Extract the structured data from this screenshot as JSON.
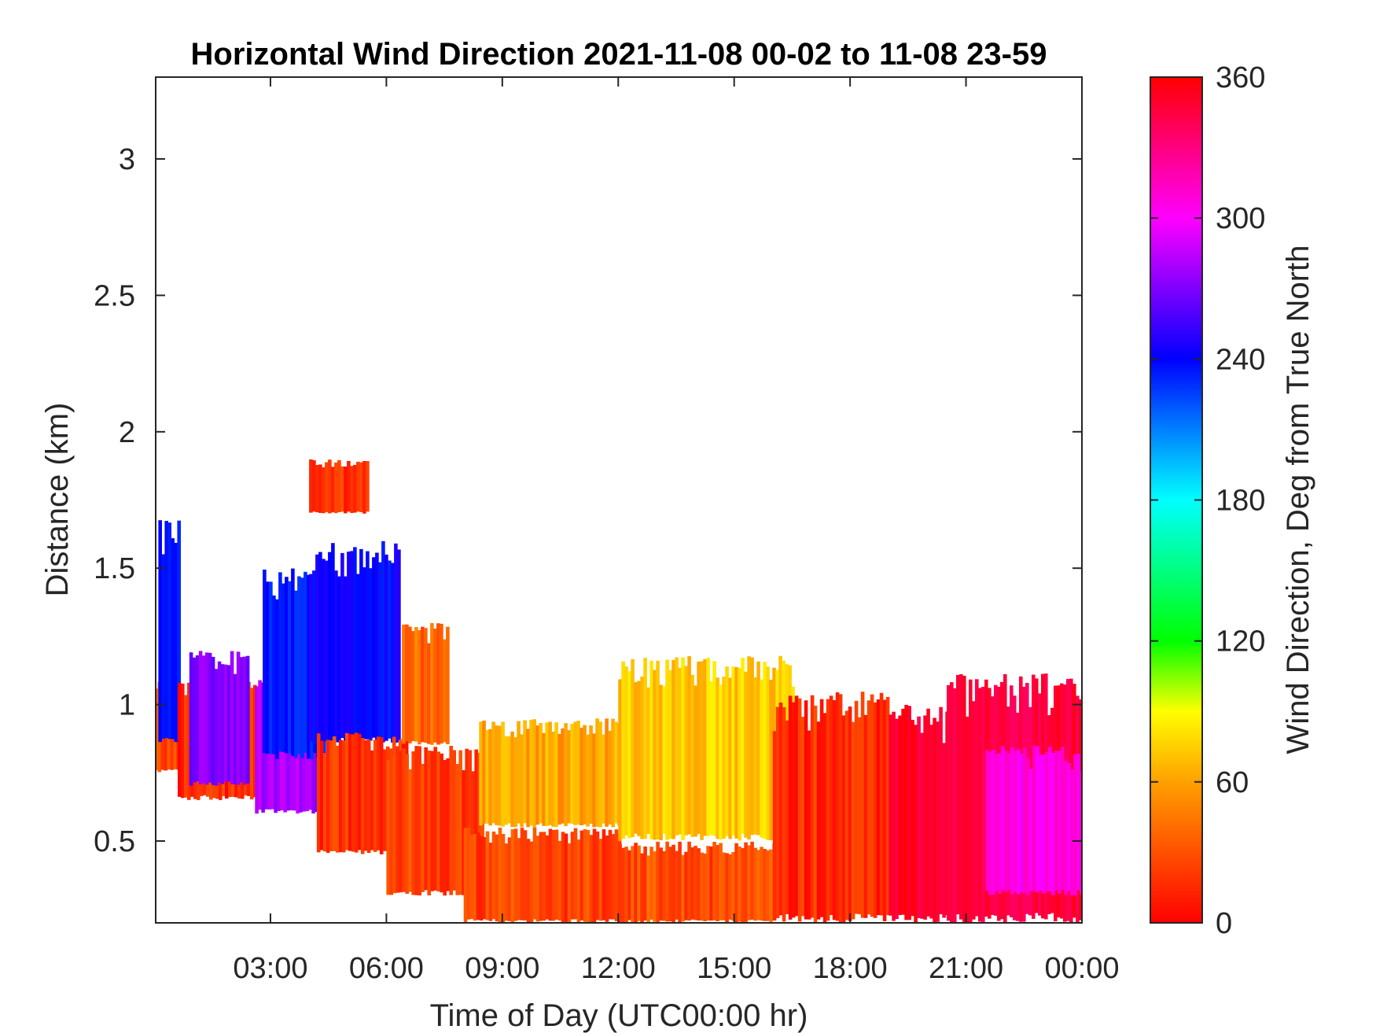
{
  "chart_data": {
    "type": "heatmap",
    "title": "Horizontal Wind Direction 2021-11-08 00-02 to 11-08 23-59",
    "xlabel": "Time of Day (UTC00:00 hr)",
    "ylabel": "Distance (km)",
    "xlim_hours": [
      0.03,
      24.0
    ],
    "ylim_km": [
      0.2,
      3.3
    ],
    "x_ticks": [
      {
        "hours": 3,
        "label": "03:00"
      },
      {
        "hours": 6,
        "label": "06:00"
      },
      {
        "hours": 9,
        "label": "09:00"
      },
      {
        "hours": 12,
        "label": "12:00"
      },
      {
        "hours": 15,
        "label": "15:00"
      },
      {
        "hours": 18,
        "label": "18:00"
      },
      {
        "hours": 21,
        "label": "21:00"
      },
      {
        "hours": 24,
        "label": "00:00"
      }
    ],
    "y_ticks": [
      {
        "km": 0.5,
        "label": "0.5"
      },
      {
        "km": 1,
        "label": "1"
      },
      {
        "km": 1.5,
        "label": "1.5"
      },
      {
        "km": 2,
        "label": "2"
      },
      {
        "km": 2.5,
        "label": "2.5"
      },
      {
        "km": 3,
        "label": "3"
      }
    ],
    "colorbar": {
      "label": "Wind Direction, Deg from True North",
      "range": [
        0,
        360
      ],
      "ticks": [
        {
          "value": 0,
          "label": "0"
        },
        {
          "value": 60,
          "label": "60"
        },
        {
          "value": 120,
          "label": "120"
        },
        {
          "value": 180,
          "label": "180"
        },
        {
          "value": 240,
          "label": "240"
        },
        {
          "value": 300,
          "label": "300"
        },
        {
          "value": 360,
          "label": "360"
        }
      ],
      "colors": [
        "#ff0000",
        "#ff8000",
        "#ffff00",
        "#00ff00",
        "#00ffff",
        "#0000ff",
        "#ff00ff",
        "#ff0000"
      ]
    },
    "regions": [
      {
        "t0": 0.0,
        "t1": 0.6,
        "z0": 0.75,
        "z1": 1.1,
        "dir_deg": 15,
        "note_color": "#ff4000"
      },
      {
        "t0": 0.1,
        "t1": 0.6,
        "z0": 0.85,
        "z1": 1.7,
        "dir_deg": 240,
        "note_color": "#0000ff"
      },
      {
        "t0": 0.6,
        "t1": 2.6,
        "z0": 0.65,
        "z1": 1.1,
        "dir_deg": 10,
        "note_color": "#ff2000"
      },
      {
        "t0": 0.9,
        "t1": 2.4,
        "z0": 0.7,
        "z1": 1.2,
        "dir_deg": 270,
        "note_color": "#8020ff"
      },
      {
        "t0": 2.6,
        "t1": 4.2,
        "z0": 0.6,
        "z1": 1.1,
        "dir_deg": 280,
        "note_color": "#a000ff"
      },
      {
        "t0": 2.8,
        "t1": 4.4,
        "z0": 0.8,
        "z1": 1.5,
        "dir_deg": 235,
        "note_color": "#0020ff"
      },
      {
        "t0": 4.0,
        "t1": 6.3,
        "z0": 0.85,
        "z1": 1.6,
        "dir_deg": 240,
        "note_color": "#0000ff"
      },
      {
        "t0": 4.0,
        "t1": 5.5,
        "z0": 1.7,
        "z1": 1.9,
        "dir_deg": 10,
        "note_color": "#ff2000"
      },
      {
        "t0": 4.2,
        "t1": 6.5,
        "z0": 0.45,
        "z1": 0.9,
        "dir_deg": 12,
        "note_color": "#ff3000"
      },
      {
        "t0": 6.0,
        "t1": 8.5,
        "z0": 0.3,
        "z1": 0.85,
        "dir_deg": 15,
        "note_color": "#ff4000"
      },
      {
        "t0": 6.4,
        "t1": 7.6,
        "z0": 0.85,
        "z1": 1.3,
        "dir_deg": 25,
        "note_color": "#ff6000"
      },
      {
        "t0": 8.0,
        "t1": 12.0,
        "z0": 0.2,
        "z1": 0.55,
        "dir_deg": 15,
        "note_color": "#ff4000"
      },
      {
        "t0": 8.4,
        "t1": 12.0,
        "z0": 0.55,
        "z1": 0.95,
        "dir_deg": 40,
        "note_color": "#ffb000"
      },
      {
        "t0": 12.0,
        "t1": 16.0,
        "z0": 0.2,
        "z1": 0.5,
        "dir_deg": 18,
        "note_color": "#ff4800"
      },
      {
        "t0": 12.0,
        "t1": 16.5,
        "z0": 0.5,
        "z1": 1.18,
        "dir_deg": 48,
        "note_color": "#ffc000"
      },
      {
        "t0": 16.0,
        "t1": 19.0,
        "z0": 0.2,
        "z1": 1.05,
        "dir_deg": 10,
        "note_color": "#ff2000"
      },
      {
        "t0": 19.0,
        "t1": 20.5,
        "z0": 0.2,
        "z1": 1.0,
        "dir_deg": 350,
        "note_color": "#ff0040"
      },
      {
        "t0": 20.5,
        "t1": 24.0,
        "z0": 0.2,
        "z1": 1.12,
        "dir_deg": 345,
        "note_color": "#ff0060"
      },
      {
        "t0": 21.5,
        "t1": 24.0,
        "z0": 0.3,
        "z1": 0.85,
        "dir_deg": 305,
        "note_color": "#ff00ff"
      }
    ],
    "grid": false
  }
}
